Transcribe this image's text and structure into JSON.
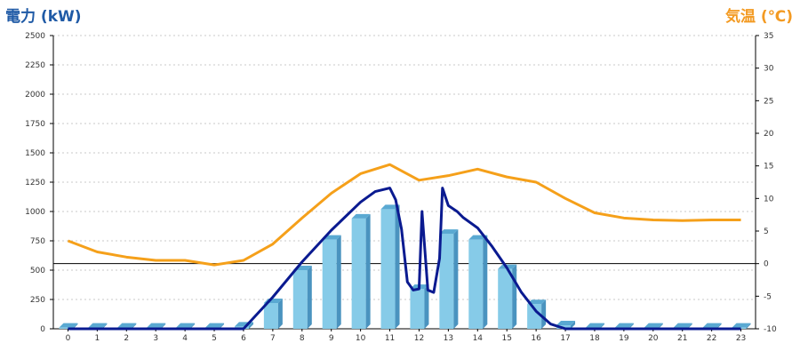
{
  "chart_data": {
    "type": "bar",
    "left_axis_title": "電力 (kW)",
    "right_axis_title": "気温 (℃)",
    "colors": {
      "left_title": "#1f5aa6",
      "right_title": "#f39a22",
      "bar_front": "#86cbe8",
      "bar_side": "#4a93bf",
      "bar_top": "#5aa9d2",
      "temperature_line": "#f5a01a",
      "power_line": "#0a1a90",
      "grid": "#c8c8c8",
      "axis": "#000000"
    },
    "ylim_left": [
      0,
      2500
    ],
    "yticks_left": [
      0,
      250,
      500,
      750,
      1000,
      1250,
      1500,
      1750,
      2000,
      2250,
      2500
    ],
    "ylim_right": [
      -10,
      35
    ],
    "yticks_right": [
      -10,
      -5,
      0,
      5,
      10,
      15,
      20,
      25,
      30,
      35
    ],
    "zero_line_right": 0,
    "grid": "horizontal-dotted",
    "categories": [
      "0",
      "1",
      "2",
      "3",
      "4",
      "5",
      "6",
      "7",
      "8",
      "9",
      "10",
      "11",
      "12",
      "13",
      "14",
      "15",
      "16",
      "17",
      "18",
      "19",
      "20",
      "21",
      "22",
      "23"
    ],
    "bars": {
      "axis": "left",
      "values": [
        10,
        10,
        10,
        10,
        10,
        10,
        20,
        220,
        500,
        760,
        940,
        1020,
        340,
        810,
        760,
        510,
        210,
        30,
        10,
        10,
        10,
        10,
        10,
        10
      ]
    },
    "temperature": {
      "axis": "right",
      "x": [
        0,
        1,
        2,
        3,
        4,
        5,
        6,
        7,
        8,
        9,
        10,
        11,
        12,
        13,
        14,
        15,
        16,
        17,
        18,
        19,
        20,
        21,
        22,
        23
      ],
      "values": [
        3.5,
        1.8,
        1.0,
        0.5,
        0.5,
        -0.2,
        0.5,
        3.0,
        7.0,
        10.8,
        13.8,
        15.2,
        12.8,
        13.5,
        14.5,
        13.3,
        12.5,
        10.0,
        7.8,
        7.0,
        6.7,
        6.6,
        6.7,
        6.7
      ]
    },
    "power_line": {
      "axis": "left",
      "x": [
        0,
        6,
        7,
        8,
        9,
        10,
        10.5,
        11,
        11.2,
        11.4,
        11.6,
        11.8,
        12,
        12.1,
        12.3,
        12.5,
        12.7,
        12.8,
        13,
        13.3,
        13.5,
        14,
        14.5,
        15,
        15.5,
        16,
        16.5,
        17,
        23
      ],
      "values": [
        0,
        0,
        270,
        570,
        840,
        1080,
        1170,
        1200,
        1100,
        850,
        400,
        330,
        340,
        1000,
        330,
        310,
        600,
        1200,
        1050,
        1000,
        950,
        860,
        700,
        520,
        310,
        150,
        40,
        0,
        0
      ]
    }
  }
}
